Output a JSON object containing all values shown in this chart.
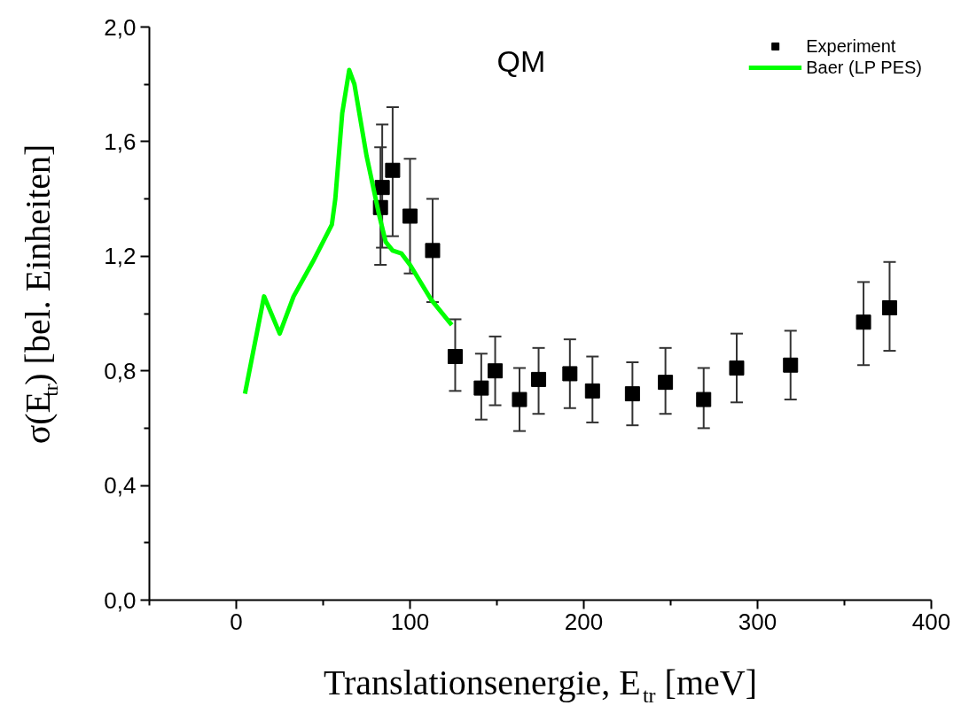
{
  "chart_data": {
    "type": "scatter",
    "xlabel": "Translationsenergie, E$_{tr}$ [meV]",
    "ylabel": "σ(E$_{tr}$) [bel. Einheiten]",
    "annotations": [
      "QM"
    ],
    "xlim": [
      -50,
      400
    ],
    "ylim": [
      0,
      2.0
    ],
    "xticks": [
      {
        "value": -50,
        "label": null
      },
      0,
      {
        "value": 50,
        "label": null
      },
      100,
      {
        "value": 150,
        "label": null
      },
      200,
      {
        "value": 250,
        "label": null
      },
      300,
      {
        "value": 350,
        "label": null
      },
      400
    ],
    "yticks": [
      {
        "value": 0,
        "label": "0,0"
      },
      {
        "value": 0.2,
        "label": null
      },
      {
        "value": 0.4,
        "label": "0,4"
      },
      {
        "value": 0.6,
        "label": null
      },
      {
        "value": 0.8,
        "label": "0,8"
      },
      {
        "value": 1.0,
        "label": null
      },
      {
        "value": 1.2,
        "label": "1,2"
      },
      {
        "value": 1.4,
        "label": null
      },
      {
        "value": 1.6,
        "label": "1,6"
      },
      {
        "value": 1.8,
        "label": null
      },
      {
        "value": 2.0,
        "label": "2,0"
      }
    ],
    "grid": false,
    "legend": "top right",
    "series": [
      {
        "name": "Experiment",
        "marker": "square",
        "color": "#000000",
        "x": [
          83,
          84,
          90,
          100,
          113,
          126,
          141,
          149,
          163,
          174,
          192,
          205,
          228,
          247,
          269,
          288,
          319,
          361,
          376
        ],
        "values": [
          1.37,
          1.44,
          1.5,
          1.34,
          1.22,
          0.85,
          0.74,
          0.8,
          0.7,
          0.77,
          0.79,
          0.73,
          0.72,
          0.76,
          0.7,
          0.81,
          0.82,
          0.97,
          1.02
        ],
        "errors": [
          [
            1.17,
            1.58
          ],
          [
            1.23,
            1.66
          ],
          [
            1.27,
            1.72
          ],
          [
            1.14,
            1.54
          ],
          [
            1.04,
            1.4
          ],
          [
            0.73,
            0.98
          ],
          [
            0.63,
            0.86
          ],
          [
            0.68,
            0.92
          ],
          [
            0.59,
            0.81
          ],
          [
            0.65,
            0.88
          ],
          [
            0.67,
            0.91
          ],
          [
            0.62,
            0.85
          ],
          [
            0.61,
            0.83
          ],
          [
            0.65,
            0.88
          ],
          [
            0.6,
            0.81
          ],
          [
            0.69,
            0.93
          ],
          [
            0.7,
            0.94
          ],
          [
            0.82,
            1.11
          ],
          [
            0.87,
            1.18
          ]
        ]
      },
      {
        "name": "Baer (LP PES)",
        "type": "line",
        "marker": "none",
        "line_style": "solid",
        "color": "#00ff00",
        "x": [
          5,
          16,
          25,
          33,
          44,
          55,
          57,
          61,
          65,
          68,
          75,
          82,
          86,
          90,
          95,
          100,
          112,
          124
        ],
        "values": [
          0.72,
          1.06,
          0.93,
          1.06,
          1.18,
          1.31,
          1.4,
          1.7,
          1.85,
          1.8,
          1.55,
          1.35,
          1.25,
          1.22,
          1.21,
          1.17,
          1.05,
          0.96
        ]
      }
    ]
  }
}
